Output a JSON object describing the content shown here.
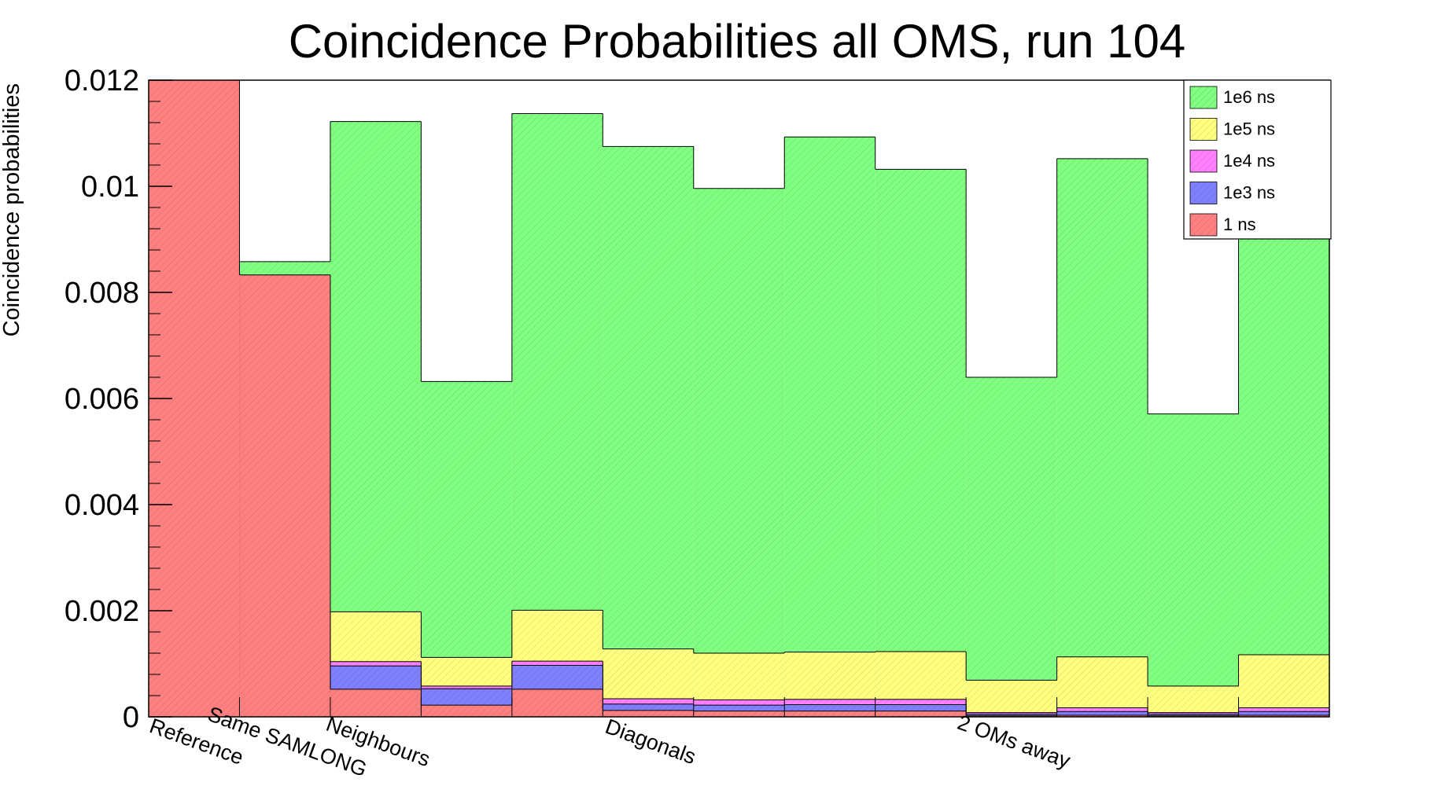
{
  "chart_data": {
    "type": "bar",
    "stacked": false,
    "title": "Coincidence Probabilities all OMS, run 104",
    "xlabel": "",
    "ylabel": "Coincidence probabilities",
    "ylim": [
      0,
      0.012
    ],
    "yticks": [
      "0",
      "0.002",
      "0.004",
      "0.006",
      "0.008",
      "0.01",
      "0.012"
    ],
    "grid": false,
    "legend_position": "top-right",
    "n_bins": 13,
    "category_labels": [
      {
        "text": "Reference",
        "bin": 1
      },
      {
        "text": "Same SAMLONG",
        "bin": 2
      },
      {
        "text": "Neighbours",
        "bin": 3
      },
      {
        "text": "Diagonals",
        "bin": 6
      },
      {
        "text": "2 OMs away",
        "bin": 10
      }
    ],
    "series": [
      {
        "name": "1e6 ns",
        "color": "#80ff80",
        "values": [
          0,
          0.00858,
          0.01122,
          0.00632,
          0.01137,
          0.01075,
          0.00996,
          0.01093,
          0.01032,
          0.0064,
          0.01052,
          0.00571,
          0.00905
        ]
      },
      {
        "name": "1e5 ns",
        "color": "#ffff80",
        "values": [
          0,
          0,
          0.00198,
          0.00112,
          0.00201,
          0.00128,
          0.0012,
          0.00122,
          0.00123,
          0.00069,
          0.00113,
          0.00058,
          0.00117
        ]
      },
      {
        "name": "1e4 ns",
        "color": "#ff80ff",
        "values": [
          0,
          0,
          0.00104,
          0.00058,
          0.00105,
          0.00034,
          0.00032,
          0.00033,
          0.00033,
          8e-05,
          0.00017,
          8e-05,
          0.00017
        ]
      },
      {
        "name": "1e3 ns",
        "color": "#8080ff",
        "values": [
          0,
          0,
          0.00096,
          0.00053,
          0.00097,
          0.00024,
          0.00022,
          0.00023,
          0.00023,
          5e-05,
          0.0001,
          5e-05,
          0.0001
        ]
      },
      {
        "name": "1 ns",
        "color": "#ff8080",
        "values": [
          0.012,
          0.00833,
          0.00052,
          0.00022,
          0.00052,
          0.00012,
          0.00011,
          0.00011,
          0.00011,
          2e-05,
          3e-05,
          2e-05,
          3e-05
        ]
      }
    ]
  }
}
